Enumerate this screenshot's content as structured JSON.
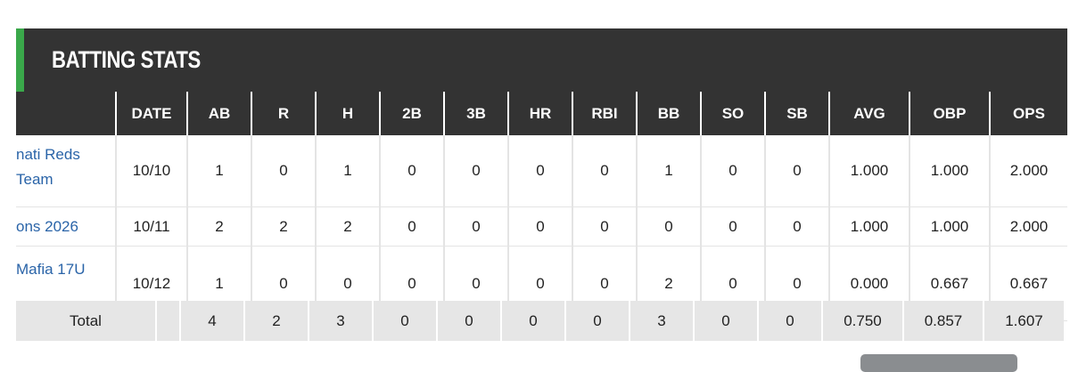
{
  "header": {
    "title": "BATTING STATS"
  },
  "table": {
    "columns": [
      "DATE",
      "AB",
      "R",
      "H",
      "2B",
      "3B",
      "HR",
      "RBI",
      "BB",
      "SO",
      "SB",
      "AVG",
      "OBP",
      "OPS"
    ],
    "rows": [
      {
        "team": "nati Reds Team",
        "cells": [
          "10/10",
          "1",
          "0",
          "1",
          "0",
          "0",
          "0",
          "0",
          "1",
          "0",
          "0",
          "1.000",
          "1.000",
          "2.000"
        ]
      },
      {
        "team": "ons 2026",
        "cells": [
          "10/11",
          "2",
          "2",
          "2",
          "0",
          "0",
          "0",
          "0",
          "0",
          "0",
          "0",
          "1.000",
          "1.000",
          "2.000"
        ]
      },
      {
        "team": "Mafia 17U",
        "cells": [
          "10/12",
          "1",
          "0",
          "0",
          "0",
          "0",
          "0",
          "0",
          "2",
          "0",
          "0",
          "0.000",
          "0.667",
          "0.667"
        ]
      }
    ],
    "total": {
      "label": "Total",
      "cells": [
        "4",
        "2",
        "3",
        "0",
        "0",
        "0",
        "0",
        "3",
        "0",
        "0",
        "0.750",
        "0.857",
        "1.607"
      ]
    }
  }
}
